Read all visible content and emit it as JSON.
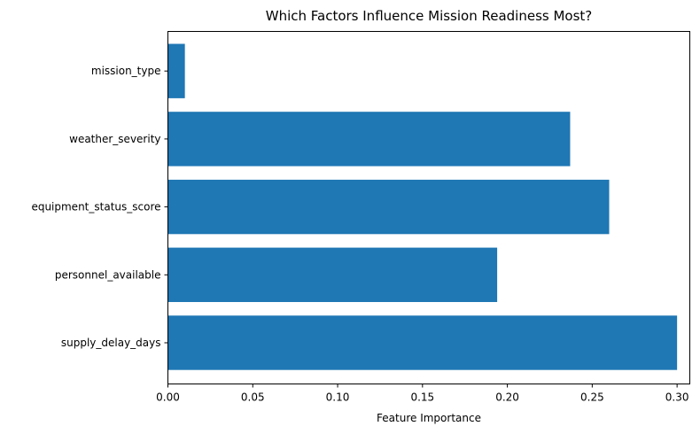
{
  "chart_data": {
    "type": "bar",
    "orientation": "horizontal",
    "title": "Which Factors Influence Mission Readiness Most?",
    "xlabel": "Feature Importance",
    "ylabel": "",
    "categories": [
      "supply_delay_days",
      "personnel_available",
      "equipment_status_score",
      "weather_severity",
      "mission_type"
    ],
    "values": [
      0.3,
      0.194,
      0.26,
      0.237,
      0.01
    ],
    "xlim": [
      0,
      0.3075
    ],
    "xticks": [
      "0.00",
      "0.05",
      "0.10",
      "0.15",
      "0.20",
      "0.25",
      "0.30"
    ],
    "grid": false,
    "bar_color": "#1f77b4"
  }
}
